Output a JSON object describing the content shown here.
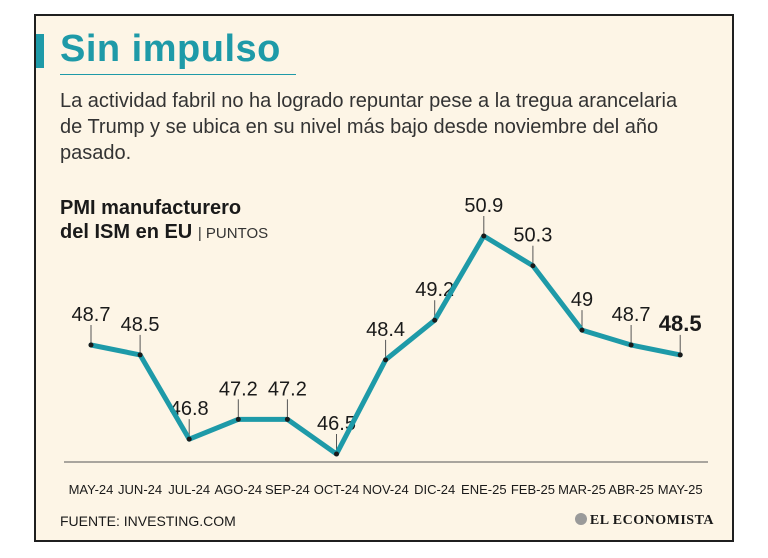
{
  "header": {
    "title": "Sin impulso",
    "subtitle": "La actividad fabril no ha logrado repuntar pese a la tregua arancelaria de Trump y se ubica en su nivel más bajo desde noviembre del año pasado."
  },
  "chart_title": {
    "line1": "PMI manufacturero",
    "line2": "del ISM en EU",
    "unit": "| PUNTOS"
  },
  "chart_data": {
    "type": "line",
    "title": "PMI manufacturero del ISM en EU",
    "unit": "PUNTOS",
    "categories": [
      "MAY-24",
      "JUN-24",
      "JUL-24",
      "AGO-24",
      "SEP-24",
      "OCT-24",
      "NOV-24",
      "DIC-24",
      "ENE-25",
      "FEB-25",
      "MAR-25",
      "ABR-25",
      "MAY-25"
    ],
    "values": [
      48.7,
      48.5,
      46.8,
      47.2,
      47.2,
      46.5,
      48.4,
      49.2,
      50.9,
      50.3,
      49,
      48.7,
      48.5
    ],
    "value_labels": [
      "48.7",
      "48.5",
      "46.8",
      "47.2",
      "47.2",
      "46.5",
      "48.4",
      "49.2",
      "50.9",
      "50.3",
      "49",
      "48.7",
      "48.5"
    ],
    "highlight_last": true,
    "grid": false,
    "line_color": "#1e9aa8"
  },
  "footer": {
    "source": "FUENTE: INVESTING.COM",
    "brand": "EL ECONOMISTA"
  },
  "colors": {
    "accent": "#1e9aa8",
    "background": "#fdf5e6",
    "text": "#1a1a1a"
  }
}
